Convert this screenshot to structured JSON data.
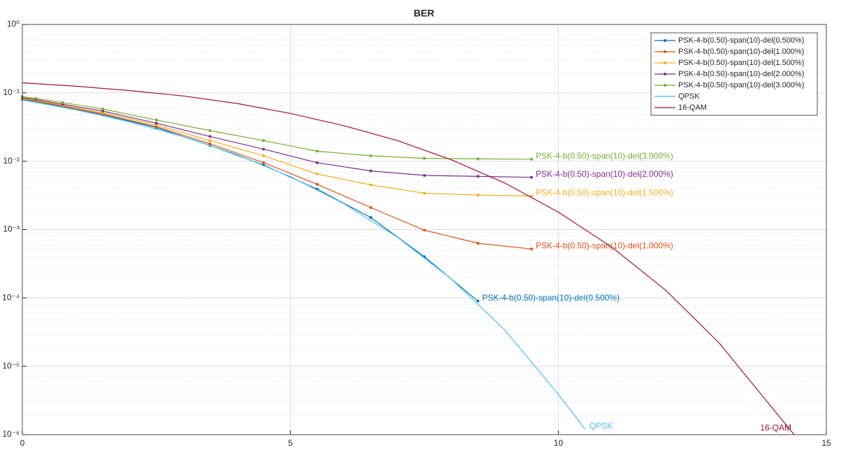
{
  "chart_data": {
    "type": "line",
    "title": "BER",
    "log_y": true,
    "grid": true,
    "minor_grid": true,
    "legend_position": "top-right",
    "xlim": [
      0,
      15
    ],
    "xticks": [
      0,
      5,
      10,
      15
    ],
    "ylim": [
      1e-06,
      1
    ],
    "yticks": [
      {
        "value": 1e-06,
        "label": "10⁻⁶"
      },
      {
        "value": 1e-05,
        "label": "10⁻⁵"
      },
      {
        "value": 0.0001,
        "label": "10⁻⁴"
      },
      {
        "value": 0.001,
        "label": "10⁻³"
      },
      {
        "value": 0.01,
        "label": "10⁻²"
      },
      {
        "value": 0.1,
        "label": "10⁻¹"
      },
      {
        "value": 1,
        "label": "10⁰"
      }
    ],
    "series": [
      {
        "name": "PSK-4-b(0.50)-span(10)-del(0.500%)",
        "annotation": "PSK-4-b(0.50)-span(10)-del(0.500%)",
        "color": "#0072bd",
        "markers": true,
        "x": [
          0,
          0.25,
          0.75,
          1.5,
          2.5,
          3.5,
          4.5,
          5.5,
          6.5,
          7.5,
          8.5
        ],
        "values": [
          0.08,
          0.075,
          0.063,
          0.048,
          0.031,
          0.017,
          0.0088,
          0.0039,
          0.0015,
          0.0004,
          9e-05
        ]
      },
      {
        "name": "PSK-4-b(0.50)-span(10)-del(1.000%)",
        "annotation": "PSK-4-b(0.50)-span(10)-del(1.000%)",
        "color": "#d95319",
        "markers": true,
        "x": [
          0,
          0.25,
          0.75,
          1.5,
          2.5,
          3.5,
          4.5,
          5.5,
          6.5,
          7.5,
          8.5,
          9.5
        ],
        "values": [
          0.082,
          0.076,
          0.064,
          0.049,
          0.032,
          0.018,
          0.0095,
          0.0046,
          0.0021,
          0.00098,
          0.00063,
          0.00052
        ]
      },
      {
        "name": "PSK-4-b(0.50)-span(10)-del(1.500%)",
        "annotation": "PSK-4-b(0.50)-span(10)-del(1.500%)",
        "color": "#edb120",
        "markers": true,
        "x": [
          0,
          0.25,
          0.75,
          1.5,
          2.5,
          3.5,
          4.5,
          5.5,
          6.5,
          7.5,
          8.5,
          9.5
        ],
        "values": [
          0.083,
          0.078,
          0.066,
          0.051,
          0.034,
          0.02,
          0.012,
          0.0065,
          0.0045,
          0.0034,
          0.0032,
          0.0031
        ]
      },
      {
        "name": "PSK-4-b(0.50)-span(10)-del(2.000%)",
        "annotation": "PSK-4-b(0.50)-span(10)-del(2.000%)",
        "color": "#7e2f8e",
        "markers": true,
        "x": [
          0,
          0.25,
          0.75,
          1.5,
          2.5,
          3.5,
          4.5,
          5.5,
          6.5,
          7.5,
          8.5,
          9.5
        ],
        "values": [
          0.085,
          0.08,
          0.068,
          0.054,
          0.036,
          0.023,
          0.015,
          0.0095,
          0.0072,
          0.0062,
          0.006,
          0.0058
        ]
      },
      {
        "name": "PSK-4-b(0.50)-span(10)-del(3.000%)",
        "annotation": "PSK-4-b(0.50)-span(10)-del(3.000%)",
        "color": "#77ac30",
        "markers": true,
        "x": [
          0,
          0.25,
          0.75,
          1.5,
          2.5,
          3.5,
          4.5,
          5.5,
          6.5,
          7.5,
          8.5,
          9.5
        ],
        "values": [
          0.088,
          0.083,
          0.072,
          0.058,
          0.04,
          0.028,
          0.02,
          0.014,
          0.012,
          0.011,
          0.0108,
          0.0107
        ]
      },
      {
        "name": "QPSK",
        "annotation": "QPSK",
        "color": "#4dbeee",
        "markers": false,
        "x": [
          0,
          1,
          2,
          3,
          4,
          5,
          6,
          7,
          8,
          9,
          10,
          10.5
        ],
        "values": [
          0.0786,
          0.0563,
          0.0375,
          0.0229,
          0.0125,
          0.00595,
          0.00239,
          0.00077,
          0.00019,
          3.4e-05,
          3.9e-06,
          1.2e-06
        ]
      },
      {
        "name": "16-QAM",
        "annotation": "16-QAM",
        "color": "#a2142f",
        "markers": false,
        "x": [
          0,
          1,
          2,
          3,
          4,
          5,
          6,
          7,
          8,
          9,
          10,
          11,
          12,
          13,
          14,
          14.4
        ],
        "values": [
          0.14,
          0.125,
          0.108,
          0.09,
          0.07,
          0.05,
          0.033,
          0.02,
          0.0105,
          0.0048,
          0.0018,
          0.00055,
          0.00013,
          2.2e-05,
          2.4e-06,
          1e-06
        ]
      }
    ]
  }
}
